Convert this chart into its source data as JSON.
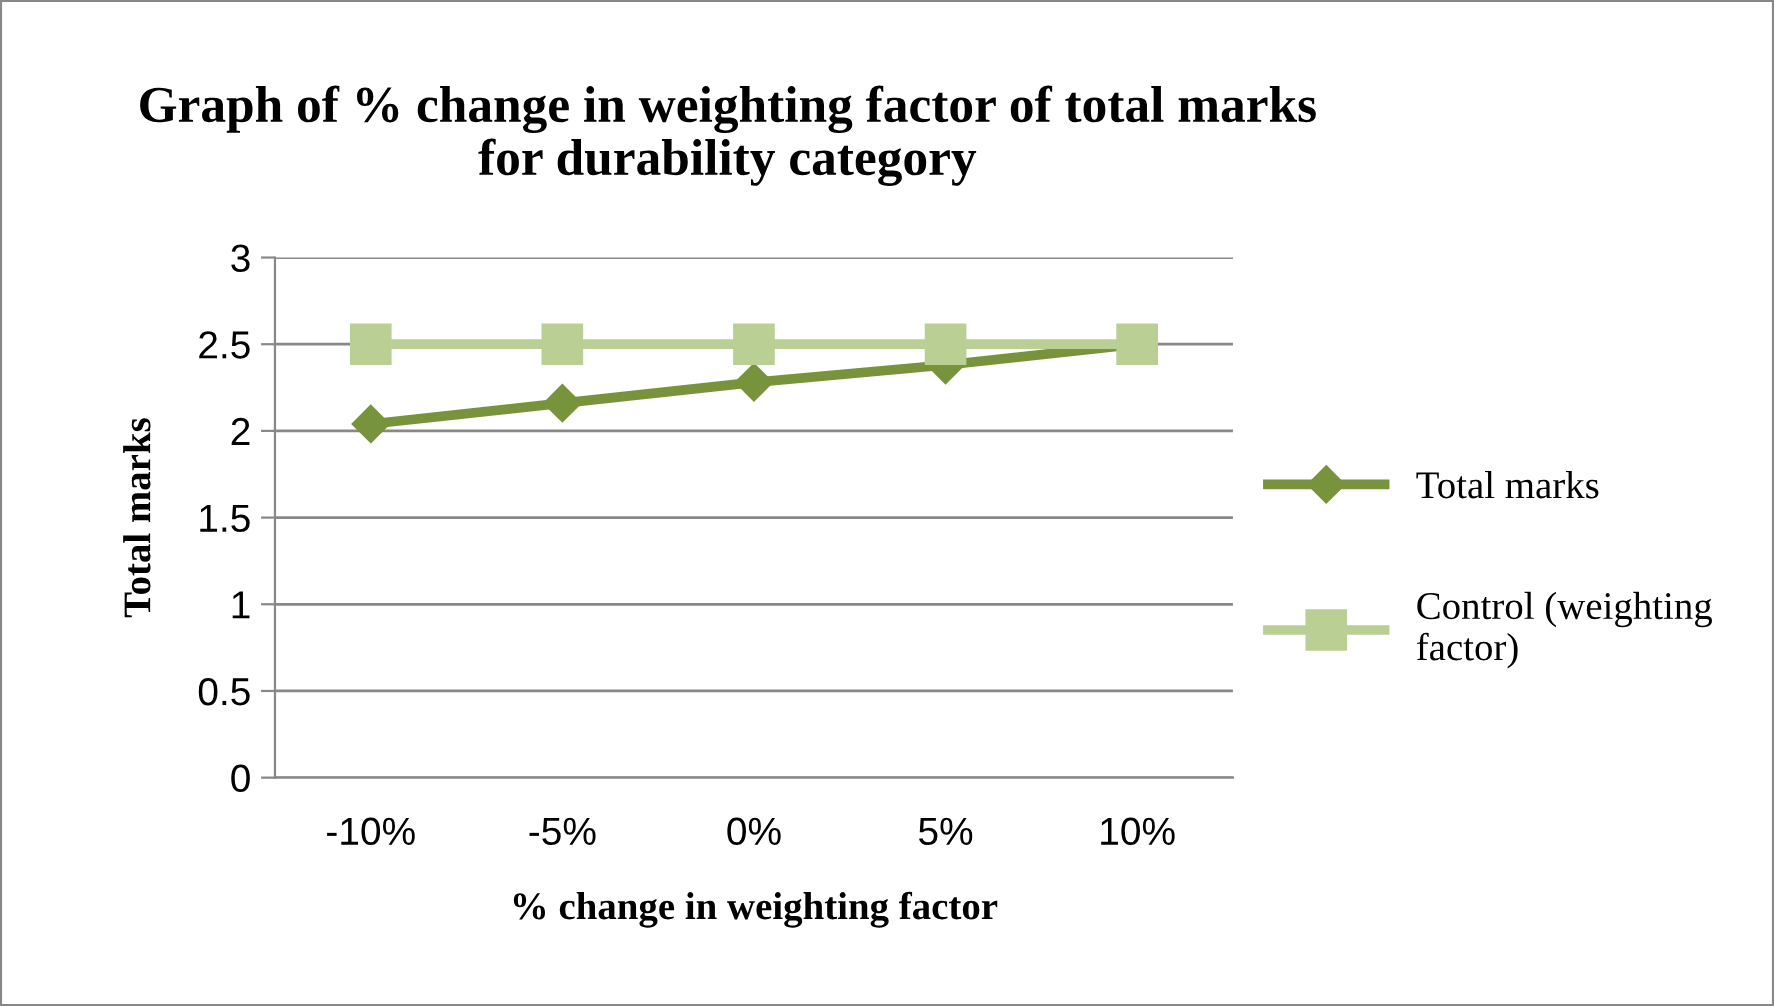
{
  "chart_data": {
    "type": "line",
    "title": "Graph of % change in weighting factor of total marks\nfor durability category",
    "xlabel": "% change in weighting factor",
    "ylabel": "Total marks",
    "categories": [
      "-10%",
      "-5%",
      "0%",
      "5%",
      "10%"
    ],
    "series": [
      {
        "name": "Total marks",
        "color": "#77933c",
        "values": [
          2.04,
          2.16,
          2.28,
          2.38,
          2.5
        ],
        "marker": "diamond"
      },
      {
        "name": "Control (weighting\nfactor)",
        "color": "#b9cf93",
        "values": [
          2.5,
          2.5,
          2.5,
          2.5,
          2.5
        ],
        "marker": "square"
      }
    ],
    "ylim": [
      0,
      3
    ],
    "yticks": [
      0,
      0.5,
      1,
      1.5,
      2,
      2.5,
      3
    ],
    "grid": "y",
    "legend": "right",
    "line_style": "solid"
  }
}
